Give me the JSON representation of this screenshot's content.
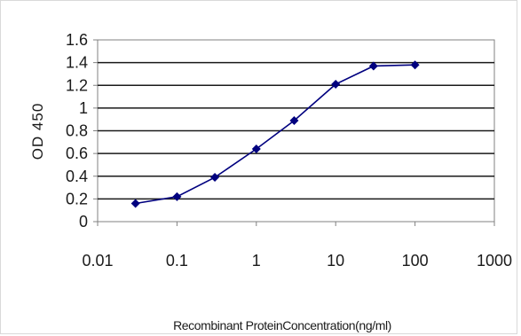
{
  "chart_data": {
    "type": "line",
    "title": "",
    "xlabel": "Recombinant ProteinConcentration(ng/ml)",
    "ylabel": "OD 450",
    "x_scale": "log",
    "xlim": [
      0.01,
      1000
    ],
    "ylim": [
      0,
      1.6
    ],
    "x_ticks": [
      "0.01",
      "0.1",
      "1",
      "10",
      "100",
      "1000"
    ],
    "y_ticks": [
      "0",
      "0.2",
      "0.4",
      "0.6",
      "0.8",
      "1",
      "1.2",
      "1.4",
      "1.6"
    ],
    "grid": "horizontal",
    "legend": "none",
    "series": [
      {
        "color": "#00007f",
        "marker": "diamond",
        "x": [
          0.03,
          0.1,
          0.3,
          1,
          3,
          10,
          30,
          100
        ],
        "y": [
          0.16,
          0.22,
          0.39,
          0.64,
          0.89,
          1.21,
          1.37,
          1.38
        ]
      }
    ]
  }
}
